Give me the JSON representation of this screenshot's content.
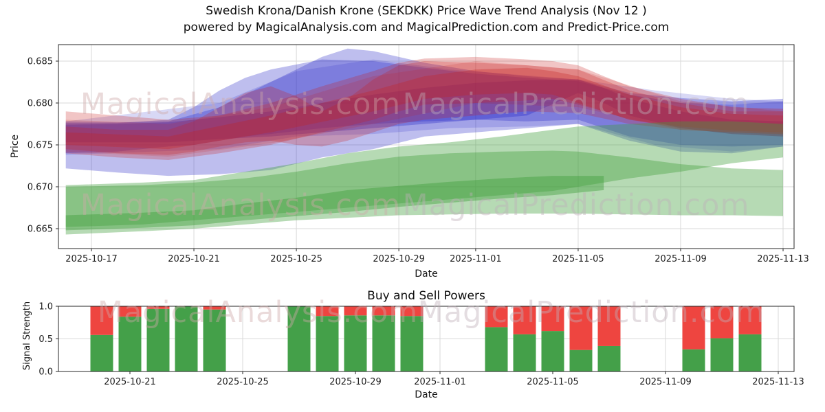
{
  "header": {
    "title": "Swedish Krona/Danish Krone (SEKDKK) Price Wave Trend Analysis (Nov 12 )",
    "subtitle": "powered by MagicalAnalysis.com and MagicalPrediction.com and Predict-Price.com"
  },
  "watermarks": {
    "analysis": "MagicalAnalysis.com",
    "prediction": "MagicalPrediction.com"
  },
  "colors": {
    "blue_band": "#2828c8",
    "red_band": "#c82020",
    "green_band": "#3f9e3a",
    "bar_buy_green": "#44a049",
    "bar_sell_red": "#ee4540",
    "grid": "#d8d8d8",
    "spine": "#262626",
    "tick_text": "#1c1c1c"
  },
  "chart_data": [
    {
      "type": "area",
      "role": "price-wave-trend",
      "xlabel": "Date",
      "ylabel": "Price",
      "day0_date": "2025-10-16",
      "ylim": [
        0.6626,
        0.687
      ],
      "yticks": [
        0.665,
        0.67,
        0.675,
        0.68,
        0.685
      ],
      "ytick_labels": [
        "0.665",
        "0.670",
        "0.675",
        "0.680",
        "0.685"
      ],
      "xtick_days": [
        1,
        5,
        9,
        13,
        16,
        20,
        24,
        28
      ],
      "xtick_labels": [
        "2025-10-17",
        "2025-10-21",
        "2025-10-25",
        "2025-10-29",
        "2025-11-01",
        "2025-11-05",
        "2025-11-09",
        "2025-11-13"
      ],
      "grid": true,
      "bands": [
        {
          "name": "blue-wave-1",
          "color": "blue_band",
          "opacity": 0.3,
          "points": [
            [
              0,
              0.6722,
              0.6778
            ],
            [
              2,
              0.6717,
              0.6777
            ],
            [
              4,
              0.6713,
              0.6778
            ],
            [
              6,
              0.6715,
              0.6795
            ],
            [
              8,
              0.672,
              0.6825
            ],
            [
              10,
              0.6735,
              0.6855
            ],
            [
              11,
              0.674,
              0.6865
            ],
            [
              12,
              0.6745,
              0.6862
            ],
            [
              14,
              0.676,
              0.6848
            ],
            [
              16,
              0.6765,
              0.6838
            ],
            [
              18,
              0.677,
              0.6832
            ],
            [
              20,
              0.6775,
              0.6828
            ],
            [
              21,
              0.6765,
              0.682
            ],
            [
              22,
              0.6755,
              0.6812
            ],
            [
              24,
              0.6742,
              0.6806
            ],
            [
              26,
              0.674,
              0.6802
            ],
            [
              28,
              0.6748,
              0.6805
            ]
          ]
        },
        {
          "name": "blue-wave-2",
          "color": "blue_band",
          "opacity": 0.3,
          "points": [
            [
              0,
              0.674,
              0.6776
            ],
            [
              2,
              0.6742,
              0.6776
            ],
            [
              4,
              0.6748,
              0.678
            ],
            [
              5,
              0.675,
              0.6795
            ],
            [
              6,
              0.6755,
              0.6815
            ],
            [
              7,
              0.676,
              0.683
            ],
            [
              8,
              0.6763,
              0.684
            ],
            [
              10,
              0.677,
              0.6852
            ],
            [
              12,
              0.6775,
              0.685
            ],
            [
              14,
              0.6778,
              0.6842
            ],
            [
              16,
              0.678,
              0.6835
            ],
            [
              18,
              0.6778,
              0.683
            ],
            [
              20,
              0.678,
              0.6826
            ],
            [
              22,
              0.676,
              0.681
            ],
            [
              24,
              0.675,
              0.68
            ],
            [
              26,
              0.6748,
              0.6798
            ],
            [
              28,
              0.675,
              0.6802
            ]
          ]
        },
        {
          "name": "blue-wave-3",
          "color": "blue_band",
          "opacity": 0.34,
          "points": [
            [
              0,
              0.6753,
              0.6774
            ],
            [
              2,
              0.6753,
              0.6775
            ],
            [
              4,
              0.6753,
              0.6777
            ],
            [
              6,
              0.6757,
              0.6783
            ],
            [
              8,
              0.676,
              0.679
            ],
            [
              10,
              0.6765,
              0.68
            ],
            [
              12,
              0.677,
              0.681
            ],
            [
              14,
              0.6775,
              0.6818
            ],
            [
              16,
              0.678,
              0.6824
            ],
            [
              18,
              0.6785,
              0.6827
            ],
            [
              20,
              0.6812,
              0.6828
            ],
            [
              21,
              0.68,
              0.6818
            ],
            [
              22,
              0.6785,
              0.6805
            ],
            [
              24,
              0.677,
              0.679
            ],
            [
              26,
              0.6763,
              0.678
            ],
            [
              28,
              0.676,
              0.6778
            ]
          ]
        },
        {
          "name": "blue-wave-4",
          "color": "blue_band",
          "opacity": 0.18,
          "points": [
            [
              0,
              0.6738,
              0.6778
            ],
            [
              6,
              0.6745,
              0.68
            ],
            [
              9,
              0.676,
              0.6838
            ],
            [
              12,
              0.6763,
              0.6852
            ],
            [
              15,
              0.677,
              0.684
            ],
            [
              18,
              0.6772,
              0.6833
            ],
            [
              20,
              0.6775,
              0.6828
            ],
            [
              23,
              0.675,
              0.6815
            ],
            [
              26,
              0.6742,
              0.6805
            ],
            [
              28,
              0.6748,
              0.6802
            ]
          ]
        },
        {
          "name": "red-wave-1",
          "color": "red_band",
          "opacity": 0.26,
          "points": [
            [
              0,
              0.674,
              0.679
            ],
            [
              2,
              0.6735,
              0.6785
            ],
            [
              4,
              0.6732,
              0.678
            ],
            [
              6,
              0.674,
              0.6785
            ],
            [
              8,
              0.675,
              0.68
            ],
            [
              10,
              0.6765,
              0.682
            ],
            [
              12,
              0.678,
              0.6838
            ],
            [
              13,
              0.679,
              0.6848
            ],
            [
              14,
              0.6798,
              0.6853
            ],
            [
              16,
              0.68,
              0.6855
            ],
            [
              18,
              0.6803,
              0.6852
            ],
            [
              19,
              0.6805,
              0.685
            ],
            [
              20,
              0.6798,
              0.6845
            ],
            [
              21,
              0.679,
              0.6832
            ],
            [
              22,
              0.678,
              0.682
            ],
            [
              24,
              0.677,
              0.6805
            ],
            [
              26,
              0.6763,
              0.6795
            ],
            [
              28,
              0.676,
              0.6793
            ]
          ]
        },
        {
          "name": "red-wave-2",
          "color": "red_band",
          "opacity": 0.26,
          "points": [
            [
              0,
              0.6745,
              0.6772
            ],
            [
              2,
              0.674,
              0.6768
            ],
            [
              4,
              0.6738,
              0.6768
            ],
            [
              5,
              0.6742,
              0.6778
            ],
            [
              6,
              0.6748,
              0.6795
            ],
            [
              7,
              0.6753,
              0.6812
            ],
            [
              8,
              0.6755,
              0.682
            ],
            [
              9,
              0.675,
              0.6808
            ],
            [
              10,
              0.6748,
              0.679
            ],
            [
              11,
              0.6755,
              0.6805
            ],
            [
              12,
              0.6765,
              0.6828
            ],
            [
              13,
              0.6775,
              0.6845
            ],
            [
              14,
              0.678,
              0.685
            ],
            [
              16,
              0.6785,
              0.6848
            ],
            [
              18,
              0.679,
              0.6845
            ],
            [
              20,
              0.6788,
              0.684
            ],
            [
              22,
              0.6775,
              0.6815
            ],
            [
              24,
              0.6768,
              0.68
            ],
            [
              26,
              0.6765,
              0.679
            ],
            [
              28,
              0.6763,
              0.679
            ]
          ]
        },
        {
          "name": "red-wave-3",
          "color": "red_band",
          "opacity": 0.3,
          "points": [
            [
              0,
              0.675,
              0.6765
            ],
            [
              4,
              0.6745,
              0.676
            ],
            [
              8,
              0.6765,
              0.6785
            ],
            [
              12,
              0.679,
              0.6815
            ],
            [
              14,
              0.6805,
              0.6832
            ],
            [
              16,
              0.681,
              0.684
            ],
            [
              18,
              0.6812,
              0.6842
            ],
            [
              19,
              0.681,
              0.6838
            ],
            [
              20,
              0.68,
              0.6832
            ],
            [
              22,
              0.678,
              0.681
            ],
            [
              24,
              0.6772,
              0.6795
            ],
            [
              26,
              0.6767,
              0.6787
            ],
            [
              28,
              0.6765,
              0.6785
            ]
          ]
        },
        {
          "name": "red-wave-4",
          "color": "red_band",
          "opacity": 0.16,
          "points": [
            [
              0,
              0.6742,
              0.678
            ],
            [
              4,
              0.6736,
              0.6775
            ],
            [
              8,
              0.6752,
              0.6795
            ],
            [
              12,
              0.6775,
              0.6832
            ],
            [
              16,
              0.68,
              0.685
            ],
            [
              20,
              0.6795,
              0.684
            ],
            [
              24,
              0.6768,
              0.6802
            ],
            [
              28,
              0.6762,
              0.679
            ]
          ]
        },
        {
          "name": "green-wave-upper",
          "color": "green_band",
          "opacity": 0.38,
          "points": [
            [
              0,
              0.6652,
              0.6702
            ],
            [
              3,
              0.6655,
              0.6705
            ],
            [
              5,
              0.666,
              0.6708
            ],
            [
              7,
              0.6665,
              0.6718
            ],
            [
              9,
              0.667,
              0.6728
            ],
            [
              11,
              0.6675,
              0.674
            ],
            [
              13,
              0.668,
              0.6748
            ],
            [
              15,
              0.6685,
              0.6753
            ],
            [
              17,
              0.669,
              0.676
            ],
            [
              19,
              0.6695,
              0.6768
            ],
            [
              20,
              0.67,
              0.6772
            ],
            [
              22,
              0.671,
              0.6775
            ],
            [
              24,
              0.6718,
              0.6778
            ],
            [
              26,
              0.6728,
              0.6778
            ],
            [
              28,
              0.6735,
              0.6775
            ]
          ]
        },
        {
          "name": "green-wave-lower",
          "color": "green_band",
          "opacity": 0.38,
          "points": [
            [
              0,
              0.6643,
              0.67
            ],
            [
              3,
              0.6647,
              0.6702
            ],
            [
              5,
              0.665,
              0.6705
            ],
            [
              7,
              0.6655,
              0.671
            ],
            [
              9,
              0.666,
              0.6718
            ],
            [
              11,
              0.6663,
              0.6728
            ],
            [
              13,
              0.6666,
              0.6736
            ],
            [
              15,
              0.6667,
              0.674
            ],
            [
              17,
              0.6668,
              0.6742
            ],
            [
              19,
              0.6668,
              0.6743
            ],
            [
              20,
              0.6668,
              0.6742
            ],
            [
              22,
              0.6667,
              0.6735
            ],
            [
              24,
              0.6666,
              0.6727
            ],
            [
              26,
              0.6666,
              0.6722
            ],
            [
              28,
              0.6665,
              0.672
            ]
          ]
        },
        {
          "name": "green-wave-core",
          "color": "green_band",
          "opacity": 0.42,
          "points": [
            [
              0,
              0.6648,
              0.6666
            ],
            [
              3,
              0.6651,
              0.6669
            ],
            [
              5,
              0.6654,
              0.6672
            ],
            [
              7,
              0.666,
              0.668
            ],
            [
              9,
              0.6665,
              0.6687
            ],
            [
              11,
              0.667,
              0.6696
            ],
            [
              13,
              0.6676,
              0.6701
            ],
            [
              15,
              0.6681,
              0.6706
            ],
            [
              17,
              0.6686,
              0.671
            ],
            [
              19,
              0.669,
              0.6713
            ],
            [
              21,
              0.6696,
              0.6713
            ]
          ]
        }
      ]
    },
    {
      "type": "bar",
      "role": "buy-sell-powers",
      "title": "Buy and Sell Powers",
      "xlabel": "Date",
      "ylabel": "Signal Strength",
      "stacked": true,
      "ylim": [
        0,
        1.0
      ],
      "yticks": [
        0,
        0.5,
        1.0
      ],
      "ytick_labels": [
        "0.0",
        "0.5",
        "1.0"
      ],
      "xtick_days": [
        5,
        9,
        13,
        16,
        20,
        24,
        28
      ],
      "xtick_labels": [
        "2025-10-21",
        "2025-10-25",
        "2025-10-29",
        "2025-11-01",
        "2025-11-05",
        "2025-11-09",
        "2025-11-13"
      ],
      "grid": true,
      "categories": [
        "2025-10-20",
        "2025-10-21",
        "2025-10-22",
        "2025-10-23",
        "2025-10-24",
        "2025-10-27",
        "2025-10-28",
        "2025-10-29",
        "2025-10-30",
        "2025-10-31",
        "2025-11-03",
        "2025-11-04",
        "2025-11-05",
        "2025-11-06",
        "2025-11-07",
        "2025-11-10",
        "2025-11-11",
        "2025-11-12"
      ],
      "category_days": [
        4,
        5,
        6,
        7,
        8,
        11,
        12,
        13,
        14,
        15,
        18,
        19,
        20,
        21,
        22,
        25,
        26,
        27
      ],
      "series": [
        {
          "name": "Buy",
          "color": "bar_buy_green",
          "values": [
            0.56,
            0.84,
            0.96,
            1.0,
            0.95,
            1.0,
            0.85,
            0.86,
            0.86,
            0.85,
            0.68,
            0.57,
            0.62,
            0.33,
            0.39,
            0.34,
            0.51,
            0.57
          ]
        },
        {
          "name": "Sell",
          "color": "bar_sell_red",
          "values": [
            0.44,
            0.16,
            0.04,
            0.0,
            0.05,
            0.0,
            0.15,
            0.14,
            0.14,
            0.15,
            0.32,
            0.43,
            0.38,
            0.67,
            0.61,
            0.66,
            0.49,
            0.43
          ]
        }
      ]
    }
  ]
}
